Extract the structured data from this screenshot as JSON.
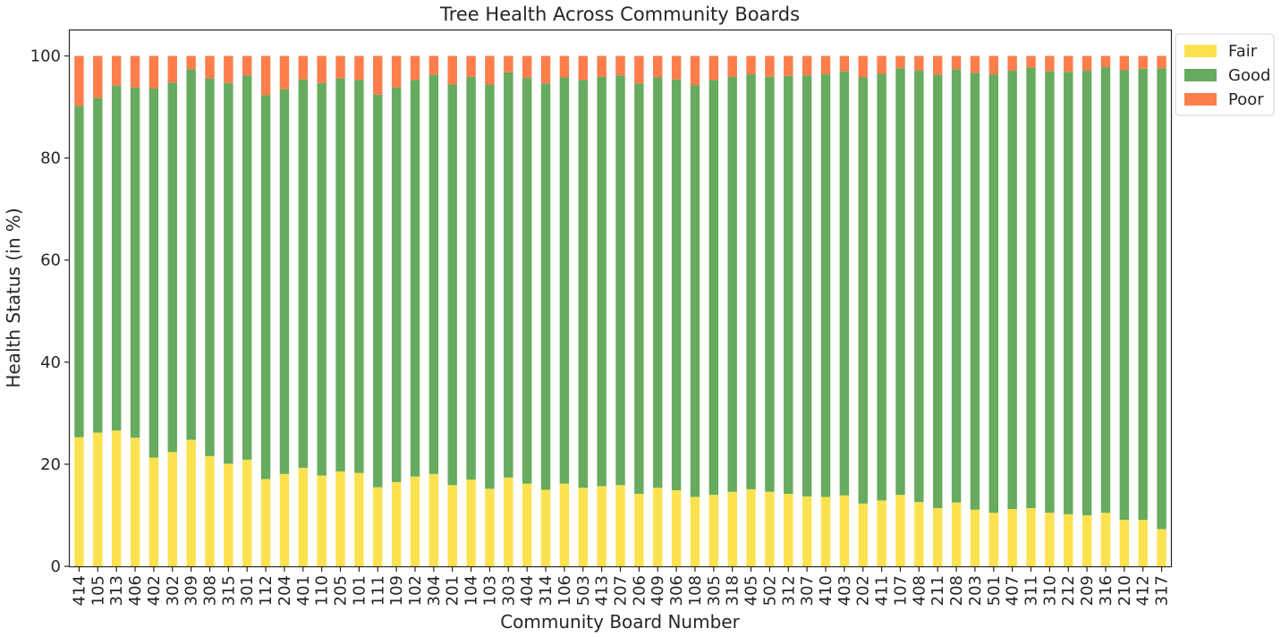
{
  "chart_data": {
    "type": "bar",
    "stacked": true,
    "title": "Tree Health Across Community Boards",
    "xlabel": "Community Board Number",
    "ylabel": "Health Status (in %)",
    "ylim": [
      0,
      105
    ],
    "yticks": [
      0,
      20,
      40,
      60,
      80,
      100
    ],
    "grid": false,
    "legend_position": "outside top-right",
    "categories": [
      "414",
      "105",
      "313",
      "406",
      "402",
      "302",
      "309",
      "308",
      "315",
      "301",
      "112",
      "204",
      "401",
      "110",
      "205",
      "101",
      "111",
      "109",
      "102",
      "304",
      "201",
      "104",
      "103",
      "303",
      "404",
      "314",
      "106",
      "503",
      "413",
      "207",
      "206",
      "409",
      "306",
      "108",
      "305",
      "318",
      "405",
      "502",
      "312",
      "307",
      "410",
      "403",
      "202",
      "411",
      "107",
      "408",
      "211",
      "208",
      "203",
      "501",
      "407",
      "311",
      "310",
      "212",
      "209",
      "316",
      "210",
      "412",
      "317"
    ],
    "series": [
      {
        "name": "Fair",
        "color": "#fde24f",
        "values": [
          25.3,
          26.2,
          26.6,
          25.2,
          21.3,
          22.4,
          24.8,
          21.6,
          20.1,
          20.9,
          17.1,
          18.1,
          19.3,
          17.8,
          18.6,
          18.3,
          15.5,
          16.5,
          17.6,
          18.1,
          15.9,
          17.0,
          15.2,
          17.4,
          16.2,
          15.0,
          16.2,
          15.4,
          15.7,
          15.9,
          14.2,
          15.4,
          14.9,
          13.6,
          14.0,
          14.6,
          15.1,
          14.6,
          14.2,
          13.7,
          13.6,
          13.9,
          12.3,
          12.9,
          14.0,
          12.6,
          11.4,
          12.5,
          11.1,
          10.5,
          11.2,
          11.4,
          10.5,
          10.2,
          10.0,
          10.5,
          9.1,
          9.1,
          7.3
        ]
      },
      {
        "name": "Good",
        "color": "#66ab5f",
        "values": [
          64.9,
          65.6,
          67.6,
          68.6,
          72.3,
          72.4,
          72.6,
          74.0,
          74.6,
          75.3,
          75.2,
          75.4,
          76.1,
          76.9,
          77.0,
          77.0,
          76.9,
          77.3,
          77.7,
          78.2,
          78.5,
          78.9,
          79.2,
          79.4,
          79.5,
          79.6,
          79.6,
          79.9,
          80.2,
          80.3,
          80.4,
          80.4,
          80.5,
          80.7,
          81.3,
          81.3,
          81.3,
          81.3,
          81.9,
          82.5,
          82.8,
          83.1,
          83.5,
          83.6,
          83.6,
          84.5,
          84.9,
          84.9,
          85.6,
          85.9,
          85.9,
          86.3,
          86.5,
          86.7,
          87.1,
          87.3,
          88.1,
          88.4,
          90.3
        ]
      },
      {
        "name": "Poor",
        "color": "#fd7e4b",
        "values": [
          9.8,
          8.2,
          5.8,
          6.2,
          6.4,
          5.2,
          2.6,
          4.4,
          5.3,
          3.8,
          7.7,
          6.5,
          4.6,
          5.3,
          4.4,
          4.7,
          7.6,
          6.2,
          4.7,
          3.7,
          5.6,
          4.1,
          5.6,
          3.2,
          4.3,
          5.4,
          4.2,
          4.7,
          4.1,
          3.8,
          5.4,
          4.2,
          4.6,
          5.7,
          4.7,
          4.1,
          3.6,
          4.1,
          3.9,
          3.8,
          3.6,
          3.0,
          4.2,
          3.5,
          2.4,
          2.9,
          3.7,
          2.6,
          3.3,
          3.6,
          2.9,
          2.3,
          3.0,
          3.1,
          2.9,
          2.2,
          2.8,
          2.5,
          2.4
        ]
      }
    ]
  }
}
